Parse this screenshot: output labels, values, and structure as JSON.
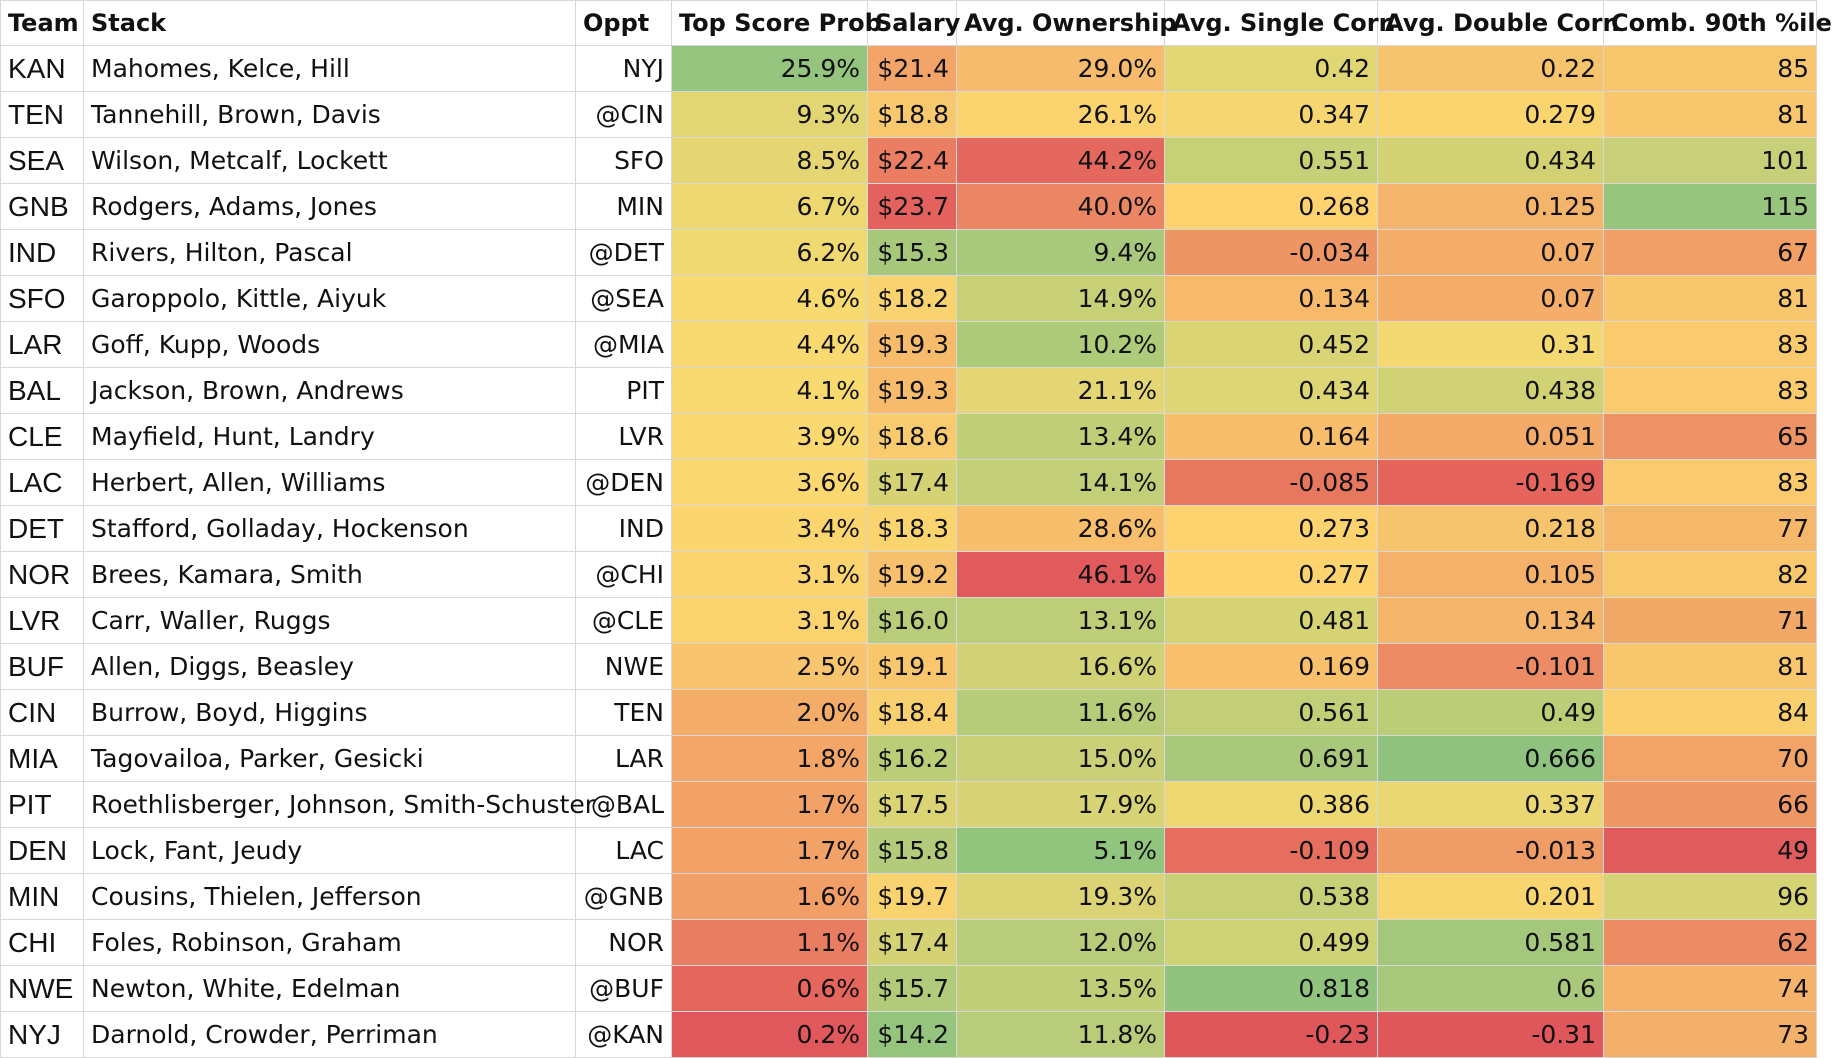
{
  "headers": {
    "team": "Team",
    "stack": "Stack",
    "oppt": "Oppt",
    "top_score_prob": "Top Score Prob",
    "salary": "Salary",
    "avg_ownership": "Avg. Ownership",
    "avg_single_corr": "Avg. Single Corr.",
    "avg_double_corr": "Avg. Double Corr.",
    "comb_90th": "Comb. 90th %ile"
  },
  "rows": [
    {
      "team": "KAN",
      "stack": "Mahomes, Kelce, Hill",
      "oppt": "NYJ",
      "top": "25.9%",
      "salary": "$21.4",
      "own": "29.0%",
      "sc": "0.42",
      "dc": "0.22",
      "p90": "85",
      "colors": {
        "top": "#94c47d",
        "salary": "#f3a468",
        "own": "#f6bb6c",
        "sc": "#e0d674",
        "dc": "#f6c46c",
        "p90": "#f7c66d"
      }
    },
    {
      "team": "TEN",
      "stack": "Tannehill, Brown, Davis",
      "oppt": "@CIN",
      "top": "9.3%",
      "salary": "$18.8",
      "own": "26.1%",
      "sc": "0.347",
      "dc": "0.279",
      "p90": "81",
      "colors": {
        "top": "#e2d574",
        "salary": "#f7c86e",
        "own": "#fbd470",
        "sc": "#f6d670",
        "dc": "#fad46f",
        "p90": "#f7c66d"
      }
    },
    {
      "team": "SEA",
      "stack": "Wilson, Metcalf, Lockett",
      "oppt": "SFO",
      "top": "8.5%",
      "salary": "$22.4",
      "own": "44.2%",
      "sc": "0.551",
      "dc": "0.434",
      "p90": "101",
      "colors": {
        "top": "#e6d673",
        "salary": "#ea7d62",
        "own": "#e4685e",
        "sc": "#c5d077",
        "dc": "#d2d275",
        "p90": "#c7d078"
      }
    },
    {
      "team": "GNB",
      "stack": "Rodgers, Adams, Jones",
      "oppt": "MIN",
      "top": "6.7%",
      "salary": "$23.7",
      "own": "40.0%",
      "sc": "0.268",
      "dc": "0.125",
      "p90": "115",
      "colors": {
        "top": "#eed871",
        "salary": "#e4625d",
        "own": "#ea8664",
        "sc": "#fdd26f",
        "dc": "#f5b46b",
        "p90": "#98c57d"
      }
    },
    {
      "team": "IND",
      "stack": "Rivers, Hilton, Pascal",
      "oppt": "@DET",
      "top": "6.2%",
      "salary": "$15.3",
      "own": "9.4%",
      "sc": "-0.034",
      "dc": "0.07",
      "p90": "67",
      "colors": {
        "top": "#f0d971",
        "salary": "#a7c87b",
        "own": "#a8c87b",
        "sc": "#ee9566",
        "dc": "#f5ad6a",
        "p90": "#f19e67"
      }
    },
    {
      "team": "SFO",
      "stack": "Garoppolo, Kittle, Aiyuk",
      "oppt": "@SEA",
      "top": "4.6%",
      "salary": "$18.2",
      "own": "14.9%",
      "sc": "0.134",
      "dc": "0.07",
      "p90": "81",
      "colors": {
        "top": "#f7da70",
        "salary": "#f9d36f",
        "own": "#c8d077",
        "sc": "#f7ba6b",
        "dc": "#f5ad6a",
        "p90": "#f7c66d"
      }
    },
    {
      "team": "LAR",
      "stack": "Goff, Kupp, Woods",
      "oppt": "@MIA",
      "top": "4.4%",
      "salary": "$19.3",
      "own": "10.2%",
      "sc": "0.452",
      "dc": "0.31",
      "p90": "83",
      "colors": {
        "top": "#f8da70",
        "salary": "#f6bc6c",
        "own": "#aecb7a",
        "sc": "#dbd475",
        "dc": "#f4d871",
        "p90": "#f9cb6e"
      }
    },
    {
      "team": "BAL",
      "stack": "Jackson, Brown, Andrews",
      "oppt": "PIT",
      "top": "4.1%",
      "salary": "$19.3",
      "own": "21.1%",
      "sc": "0.434",
      "dc": "0.438",
      "p90": "83",
      "colors": {
        "top": "#f9da70",
        "salary": "#f6bc6c",
        "own": "#e4d674",
        "sc": "#ded575",
        "dc": "#d1d275",
        "p90": "#f9cb6e"
      }
    },
    {
      "team": "CLE",
      "stack": "Mayfield, Hunt, Landry",
      "oppt": "LVR",
      "top": "3.9%",
      "salary": "$18.6",
      "own": "13.4%",
      "sc": "0.164",
      "dc": "0.051",
      "p90": "65",
      "colors": {
        "top": "#fad970",
        "salary": "#f8cb6e",
        "own": "#c0ce78",
        "sc": "#f8be6c",
        "dc": "#f4aa69",
        "p90": "#ee9366"
      }
    },
    {
      "team": "LAC",
      "stack": "Herbert, Allen, Williams",
      "oppt": "@DEN",
      "top": "3.6%",
      "salary": "$17.4",
      "own": "14.1%",
      "sc": "-0.085",
      "dc": "-0.169",
      "p90": "83",
      "colors": {
        "top": "#fbd870",
        "salary": "#d5d275",
        "own": "#c3cf78",
        "sc": "#e8775f",
        "dc": "#e5655d",
        "p90": "#f9cb6e"
      }
    },
    {
      "team": "DET",
      "stack": "Stafford, Golladay, Hockenson",
      "oppt": "IND",
      "top": "3.4%",
      "salary": "$18.3",
      "own": "28.6%",
      "sc": "0.273",
      "dc": "0.218",
      "p90": "77",
      "colors": {
        "top": "#fbd66f",
        "salary": "#fad56f",
        "own": "#f7be6c",
        "sc": "#fdd36f",
        "dc": "#f6c46c",
        "p90": "#f5b86b"
      }
    },
    {
      "team": "NOR",
      "stack": "Brees, Kamara, Smith",
      "oppt": "@CHI",
      "top": "3.1%",
      "salary": "$19.2",
      "own": "46.1%",
      "sc": "0.277",
      "dc": "0.105",
      "p90": "82",
      "colors": {
        "top": "#fbd36f",
        "salary": "#f7c06c",
        "own": "#e15b5c",
        "sc": "#fdd46f",
        "dc": "#f5b16a",
        "p90": "#f8c86d"
      }
    },
    {
      "team": "LVR",
      "stack": "Carr, Waller, Ruggs",
      "oppt": "@CLE",
      "top": "3.1%",
      "salary": "$16.0",
      "own": "13.1%",
      "sc": "0.481",
      "dc": "0.134",
      "p90": "71",
      "colors": {
        "top": "#fbd36f",
        "salary": "#b8cc79",
        "own": "#bdcd78",
        "sc": "#d6d375",
        "dc": "#f5b56b",
        "p90": "#f2a968"
      }
    },
    {
      "team": "BUF",
      "stack": "Allen, Diggs, Beasley",
      "oppt": "NWE",
      "top": "2.5%",
      "salary": "$19.1",
      "own": "16.6%",
      "sc": "0.169",
      "dc": "-0.101",
      "p90": "81",
      "colors": {
        "top": "#f8c46d",
        "salary": "#f8c66d",
        "own": "#d1d276",
        "sc": "#f8bf6c",
        "dc": "#ec8b64",
        "p90": "#f7c66d"
      }
    },
    {
      "team": "CIN",
      "stack": "Burrow, Boyd, Higgins",
      "oppt": "TEN",
      "top": "2.0%",
      "salary": "$18.4",
      "own": "11.6%",
      "sc": "0.561",
      "dc": "0.49",
      "p90": "84",
      "colors": {
        "top": "#f4ad69",
        "salary": "#f9d06f",
        "own": "#b6cc79",
        "sc": "#c2cf78",
        "dc": "#bccd78",
        "p90": "#fad06e"
      }
    },
    {
      "team": "MIA",
      "stack": "Tagovailoa, Parker, Gesicki",
      "oppt": "LAR",
      "top": "1.8%",
      "salary": "$16.2",
      "own": "15.0%",
      "sc": "0.691",
      "dc": "0.666",
      "p90": "70",
      "colors": {
        "top": "#f3a668",
        "salary": "#bccd78",
        "own": "#c9d077",
        "sc": "#a9c87b",
        "dc": "#8ec27e",
        "p90": "#f2a468"
      }
    },
    {
      "team": "PIT",
      "stack": "Roethlisberger, Johnson, Smith-Schuster",
      "oppt": "@BAL",
      "top": "1.7%",
      "salary": "$17.5",
      "own": "17.9%",
      "sc": "0.386",
      "dc": "0.337",
      "p90": "66",
      "colors": {
        "top": "#f2a267",
        "salary": "#dad474",
        "own": "#d8d375",
        "sc": "#eed871",
        "dc": "#ead773",
        "p90": "#ef9866"
      }
    },
    {
      "team": "DEN",
      "stack": "Lock, Fant, Jeudy",
      "oppt": "LAC",
      "top": "1.7%",
      "salary": "$15.8",
      "own": "5.1%",
      "sc": "-0.109",
      "dc": "-0.013",
      "p90": "49",
      "colors": {
        "top": "#f2a267",
        "salary": "#b3cb7a",
        "own": "#91c47d",
        "sc": "#e66e5e",
        "dc": "#ef9c67",
        "p90": "#e05b5c"
      }
    },
    {
      "team": "MIN",
      "stack": "Cousins, Thielen, Jefferson",
      "oppt": "@GNB",
      "top": "1.6%",
      "salary": "$19.7",
      "own": "19.3%",
      "sc": "0.538",
      "dc": "0.201",
      "p90": "96",
      "colors": {
        "top": "#f19e67",
        "salary": "#f9d370",
        "own": "#dcd474",
        "sc": "#c7d077",
        "dc": "#f9d570",
        "p90": "#d6d375"
      }
    },
    {
      "team": "CHI",
      "stack": "Foles, Robinson, Graham",
      "oppt": "NOR",
      "top": "1.1%",
      "salary": "$17.4",
      "own": "12.0%",
      "sc": "0.499",
      "dc": "0.581",
      "p90": "62",
      "colors": {
        "top": "#e97d61",
        "salary": "#d5d275",
        "own": "#b8cc79",
        "sc": "#d0d276",
        "dc": "#a4c77c",
        "p90": "#ec8c64"
      }
    },
    {
      "team": "NWE",
      "stack": "Newton, White, Edelman",
      "oppt": "@BUF",
      "top": "0.6%",
      "salary": "$15.7",
      "own": "13.5%",
      "sc": "0.818",
      "dc": "0.6",
      "p90": "74",
      "colors": {
        "top": "#e4665d",
        "salary": "#b1cb7a",
        "own": "#c0ce78",
        "sc": "#90c37d",
        "dc": "#a9c87b",
        "p90": "#f4b26a"
      }
    },
    {
      "team": "NYJ",
      "stack": "Darnold, Crowder, Perriman",
      "oppt": "@KAN",
      "top": "0.2%",
      "salary": "$14.2",
      "own": "11.8%",
      "sc": "-0.23",
      "dc": "-0.31",
      "p90": "73",
      "colors": {
        "top": "#e0585b",
        "salary": "#94c47d",
        "own": "#b8cc79",
        "sc": "#e0575b",
        "dc": "#df565b",
        "p90": "#f3b06a"
      }
    }
  ]
}
